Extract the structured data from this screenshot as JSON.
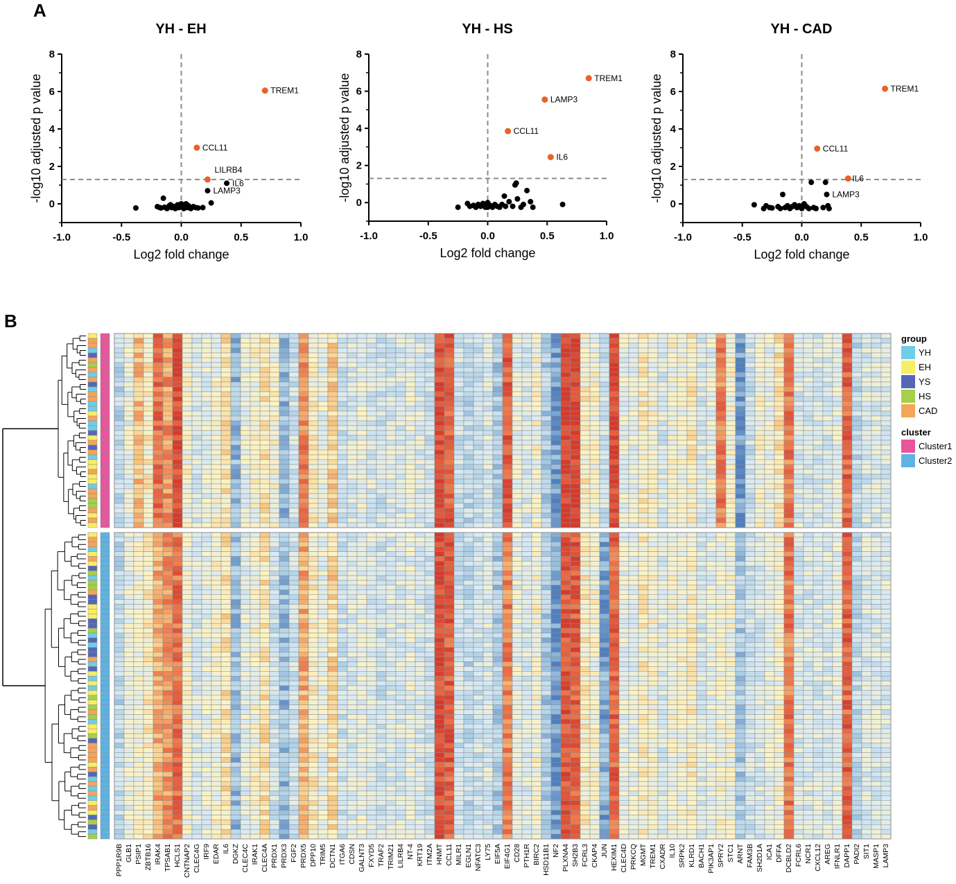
{
  "panel_labels": {
    "a": "A",
    "b": "B"
  },
  "chart_data": [
    {
      "type": "scatter",
      "title": "YH - EH",
      "xlabel": "Log2 fold change",
      "ylabel": "-log10 adjusted p value",
      "xlim": [
        -1.0,
        1.0
      ],
      "ylim": [
        -1,
        8
      ],
      "xticks": [
        "-1.0",
        "-0.5",
        "0.0",
        "0.5",
        "1.0"
      ],
      "yticks": [
        "0",
        "2",
        "4",
        "6",
        "8"
      ],
      "threshold_y": 1.3,
      "highlight_color": "#e8622c",
      "base_color": "#000000",
      "highlighted": [
        {
          "label": "TREM1",
          "x": 0.7,
          "y": 6.05
        },
        {
          "label": "CCL11",
          "x": 0.13,
          "y": 3.0
        },
        {
          "label": "LILRB4",
          "x": 0.22,
          "y": 1.3
        }
      ],
      "labeled": [
        {
          "label": "IL6",
          "x": 0.38,
          "y": 1.1
        },
        {
          "label": "LAMP3",
          "x": 0.22,
          "y": 0.7
        }
      ],
      "others": [
        [
          -0.38,
          -0.22
        ],
        [
          -0.15,
          0.3
        ],
        [
          -0.2,
          -0.15
        ],
        [
          -0.17,
          -0.22
        ],
        [
          -0.14,
          -0.18
        ],
        [
          -0.12,
          -0.25
        ],
        [
          -0.1,
          -0.1
        ],
        [
          -0.08,
          -0.2
        ],
        [
          -0.06,
          -0.14
        ],
        [
          -0.05,
          -0.25
        ],
        [
          -0.03,
          -0.05
        ],
        [
          -0.02,
          -0.2
        ],
        [
          0.0,
          0.0
        ],
        [
          0.01,
          -0.15
        ],
        [
          0.02,
          -0.25
        ],
        [
          0.03,
          -0.05
        ],
        [
          0.05,
          -0.2
        ],
        [
          0.06,
          -0.1
        ],
        [
          0.08,
          -0.25
        ],
        [
          0.1,
          -0.15
        ],
        [
          0.12,
          -0.2
        ],
        [
          0.14,
          -0.22
        ],
        [
          0.18,
          -0.2
        ],
        [
          0.25,
          0.05
        ],
        [
          -0.09,
          -0.05
        ],
        [
          -0.18,
          -0.2
        ],
        [
          0.04,
          0.0
        ]
      ]
    },
    {
      "type": "scatter",
      "title": "YH - HS",
      "xlabel": "Log2 fold change",
      "ylabel": "-log10 adjusted p value",
      "xlim": [
        -1.0,
        1.0
      ],
      "ylim": [
        -1,
        8
      ],
      "xticks": [
        "-1.0",
        "-0.5",
        "0.0",
        "0.5",
        "1.0"
      ],
      "yticks": [
        "0",
        "2",
        "4",
        "6",
        "8"
      ],
      "threshold_y": 1.3,
      "highlight_color": "#e8622c",
      "base_color": "#000000",
      "highlighted": [
        {
          "label": "TREM1",
          "x": 0.85,
          "y": 6.7
        },
        {
          "label": "LAMP3",
          "x": 0.48,
          "y": 5.55
        },
        {
          "label": "CCL11",
          "x": 0.17,
          "y": 3.85
        },
        {
          "label": "IL6",
          "x": 0.53,
          "y": 2.45
        }
      ],
      "labeled": [],
      "others": [
        [
          -0.25,
          -0.25
        ],
        [
          -0.15,
          -0.2
        ],
        [
          -0.12,
          -0.15
        ],
        [
          -0.1,
          -0.25
        ],
        [
          -0.08,
          -0.1
        ],
        [
          -0.06,
          -0.2
        ],
        [
          -0.04,
          -0.05
        ],
        [
          -0.02,
          -0.25
        ],
        [
          0.0,
          0.0
        ],
        [
          0.02,
          -0.15
        ],
        [
          0.04,
          -0.25
        ],
        [
          0.06,
          -0.1
        ],
        [
          0.08,
          -0.2
        ],
        [
          0.1,
          -0.25
        ],
        [
          0.12,
          -0.1
        ],
        [
          0.15,
          -0.2
        ],
        [
          0.18,
          0.05
        ],
        [
          0.21,
          -0.2
        ],
        [
          0.23,
          0.95
        ],
        [
          0.24,
          1.05
        ],
        [
          0.25,
          0.2
        ],
        [
          0.28,
          -0.25
        ],
        [
          0.3,
          -0.1
        ],
        [
          0.33,
          0.65
        ],
        [
          0.36,
          0.05
        ],
        [
          0.38,
          -0.25
        ],
        [
          0.63,
          -0.1
        ],
        [
          0.0,
          -0.25
        ],
        [
          -0.17,
          -0.05
        ],
        [
          0.14,
          0.35
        ]
      ]
    },
    {
      "type": "scatter",
      "title": "YH - CAD",
      "xlabel": "Log2 fold change",
      "ylabel": "-log10 adjusted p value",
      "xlim": [
        -1.0,
        1.0
      ],
      "ylim": [
        -1,
        8
      ],
      "xticks": [
        "-1.0",
        "-0.5",
        "0.0",
        "0.5",
        "1.0"
      ],
      "yticks": [
        "0",
        "2",
        "4",
        "6",
        "8"
      ],
      "threshold_y": 1.3,
      "highlight_color": "#e8622c",
      "base_color": "#000000",
      "highlighted": [
        {
          "label": "TREM1",
          "x": 0.7,
          "y": 6.15
        },
        {
          "label": "CCL11",
          "x": 0.13,
          "y": 2.95
        },
        {
          "label": "IL6",
          "x": 0.39,
          "y": 1.35
        }
      ],
      "labeled": [
        {
          "label": "LAMP3",
          "x": 0.21,
          "y": 0.5
        }
      ],
      "others": [
        [
          -0.4,
          -0.05
        ],
        [
          -0.32,
          -0.25
        ],
        [
          -0.3,
          -0.1
        ],
        [
          -0.27,
          -0.2
        ],
        [
          -0.25,
          -0.22
        ],
        [
          -0.2,
          -0.15
        ],
        [
          -0.18,
          -0.25
        ],
        [
          -0.16,
          0.5
        ],
        [
          -0.14,
          -0.2
        ],
        [
          -0.12,
          -0.1
        ],
        [
          -0.1,
          -0.25
        ],
        [
          -0.08,
          -0.15
        ],
        [
          -0.06,
          -0.05
        ],
        [
          -0.04,
          -0.2
        ],
        [
          -0.02,
          -0.1
        ],
        [
          0.0,
          -0.25
        ],
        [
          0.02,
          0.0
        ],
        [
          0.04,
          -0.15
        ],
        [
          0.06,
          -0.25
        ],
        [
          0.08,
          1.15
        ],
        [
          0.1,
          -0.2
        ],
        [
          0.12,
          -0.25
        ],
        [
          0.18,
          -0.2
        ],
        [
          0.2,
          1.15
        ],
        [
          0.22,
          -0.1
        ],
        [
          0.23,
          -0.25
        ]
      ]
    },
    {
      "type": "heatmap",
      "genes": [
        "PPP1R9B",
        "GLB1",
        "PSIP1",
        "ZBTB16",
        "IRAK4",
        "TPSAB1",
        "HCLS1",
        "CNTNAP2",
        "CLEC4G",
        "IRF9",
        "EDAR",
        "IL6",
        "DGKZ",
        "CLEC4C",
        "IRAK1",
        "CLEC4A",
        "PRDX1",
        "PRDX3",
        "FGF2",
        "PRDX5",
        "DPP10",
        "TRIM5",
        "DCTN1",
        "ITGA6",
        "CDSN",
        "GALNT3",
        "FXYD5",
        "TRAF2",
        "TRIM21",
        "LILRB4",
        "NT-4",
        "KRT19",
        "ITM2A",
        "HNMT",
        "CCL11",
        "MILR1",
        "EGLN1",
        "NFATC3",
        "LY75",
        "EIF5A",
        "EIF4G1",
        "CD28",
        "PTH1R",
        "BIRC2",
        "HSD11B1",
        "NF2",
        "PLXNA4",
        "SH2B3",
        "FCRL3",
        "CKAP4",
        "JUN",
        "HEXIM1",
        "CLEC4D",
        "PRKCQ",
        "MGMT",
        "TREM1",
        "CXADR",
        "IL10",
        "SRPK2",
        "KLRD1",
        "BACH1",
        "PIK3AP1",
        "SPRY2",
        "STC1",
        "ARNT",
        "FAM3B",
        "SH2D1A",
        "ICA1",
        "DFFA",
        "DCBLD2",
        "FCRL6",
        "NCR1",
        "CXCL12",
        "AREG",
        "IFNLR1",
        "DAPP1",
        "PADI2",
        "SIT1",
        "MASP1",
        "LAMP3"
      ],
      "gene_profile": [
        0.25,
        0.4,
        0.45,
        0.5,
        0.7,
        0.75,
        0.85,
        0.45,
        0.35,
        0.4,
        0.45,
        0.55,
        0.15,
        0.4,
        0.45,
        0.55,
        0.3,
        0.15,
        0.3,
        0.7,
        0.5,
        0.4,
        0.6,
        0.3,
        0.35,
        0.4,
        0.35,
        0.3,
        0.35,
        0.35,
        0.4,
        0.35,
        0.3,
        0.95,
        0.9,
        0.3,
        0.25,
        0.3,
        0.35,
        0.2,
        0.8,
        0.4,
        0.35,
        0.45,
        0.2,
        0.05,
        0.92,
        0.9,
        0.5,
        0.45,
        0.1,
        0.88,
        0.4,
        0.4,
        0.5,
        0.45,
        0.35,
        0.45,
        0.45,
        0.5,
        0.35,
        0.4,
        0.45,
        0.45,
        0.2,
        0.3,
        0.35,
        0.4,
        0.45,
        0.82,
        0.35,
        0.35,
        0.35,
        0.35,
        0.4,
        0.88,
        0.25,
        0.35,
        0.35,
        0.35
      ],
      "cluster1_boost": {
        "2": 0.2,
        "4": 0.15,
        "6": 0.1,
        "16": 0.15,
        "19": 0.1,
        "40": 0.1,
        "46": 0.08,
        "47": 0.08,
        "50": 0.2,
        "51": 0.08,
        "62": 0.35,
        "64": -0.15,
        "66": 0.1,
        "68": 0.1
      },
      "cluster1_rows": 40,
      "cluster2_rows": 64,
      "group_legend_title": "group",
      "groups": [
        {
          "name": "YH",
          "color": "#6fcde6"
        },
        {
          "name": "EH",
          "color": "#f8ee64"
        },
        {
          "name": "YS",
          "color": "#5467b5"
        },
        {
          "name": "HS",
          "color": "#a6cf4a"
        },
        {
          "name": "CAD",
          "color": "#f5a45a"
        }
      ],
      "cluster_legend_title": "cluster",
      "clusters": [
        {
          "name": "Cluster1",
          "color": "#e8559c"
        },
        {
          "name": "Cluster2",
          "color": "#5fb3e2"
        }
      ],
      "color_scale": [
        "#4f7fbf",
        "#a8cde6",
        "#d9eaf3",
        "#fdf3c2",
        "#f8c27a",
        "#ee6e45",
        "#d73a2c"
      ]
    }
  ]
}
